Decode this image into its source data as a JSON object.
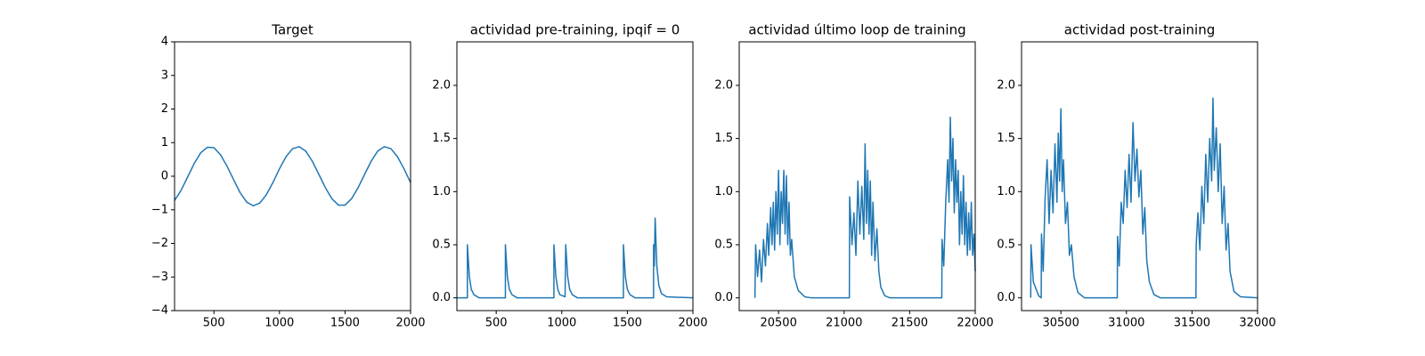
{
  "chart_data": [
    {
      "type": "line",
      "title": "Target",
      "x": [
        200,
        250,
        300,
        350,
        400,
        450,
        500,
        550,
        600,
        650,
        700,
        750,
        800,
        850,
        900,
        950,
        1000,
        1050,
        1100,
        1150,
        1200,
        1250,
        1300,
        1350,
        1400,
        1450,
        1500,
        1550,
        1600,
        1650,
        1700,
        1750,
        1800,
        1850,
        1900,
        1950,
        2000
      ],
      "values": [
        -0.72,
        -0.42,
        -0.02,
        0.38,
        0.7,
        0.86,
        0.85,
        0.64,
        0.3,
        -0.1,
        -0.49,
        -0.77,
        -0.88,
        -0.8,
        -0.55,
        -0.19,
        0.22,
        0.58,
        0.82,
        0.88,
        0.75,
        0.45,
        0.06,
        -0.34,
        -0.67,
        -0.86,
        -0.86,
        -0.67,
        -0.34,
        0.06,
        0.45,
        0.75,
        0.88,
        0.82,
        0.58,
        0.22,
        -0.19
      ],
      "color": "#1f77b4",
      "xlim": [
        200,
        2000
      ],
      "ylim": [
        -4,
        4
      ],
      "xticks": [
        500,
        1000,
        1500,
        2000
      ],
      "yticks": [
        {
          "value": -4,
          "label": "−4"
        },
        {
          "value": -3,
          "label": "−3"
        },
        {
          "value": -2,
          "label": "−2"
        },
        {
          "value": -1,
          "label": "−1"
        },
        0,
        1,
        2,
        3,
        4
      ]
    },
    {
      "type": "line",
      "title": "actividad pre-training, ipqif = 0",
      "x": [
        200,
        280,
        280,
        295,
        310,
        330,
        370,
        570,
        570,
        585,
        600,
        620,
        660,
        940,
        940,
        955,
        970,
        985,
        1025,
        1030,
        1045,
        1060,
        1080,
        1120,
        1470,
        1470,
        1485,
        1500,
        1520,
        1560,
        1700,
        1700,
        1706,
        1712,
        1725,
        1740,
        1760,
        1800,
        2000
      ],
      "values": [
        0,
        0,
        0.5,
        0.2,
        0.08,
        0.03,
        0,
        0,
        0.5,
        0.2,
        0.08,
        0.03,
        0,
        0,
        0.5,
        0.2,
        0.08,
        0.03,
        0.01,
        0.5,
        0.2,
        0.08,
        0.03,
        0,
        0,
        0.5,
        0.2,
        0.08,
        0.03,
        0,
        0,
        0.5,
        0.3,
        0.75,
        0.3,
        0.12,
        0.04,
        0.01,
        0
      ],
      "color": "#1f77b4",
      "xlim": [
        200,
        2000
      ],
      "ylim": [
        -0.12,
        2.41
      ],
      "xticks": [
        500,
        1000,
        1500,
        2000
      ],
      "yticks": [
        {
          "value": 0,
          "label": "0.0"
        },
        0.5,
        {
          "value": 1,
          "label": "1.0"
        },
        1.5,
        {
          "value": 2,
          "label": "2.0"
        }
      ]
    },
    {
      "type": "line",
      "title": "actividad último loop de training",
      "x": [
        20320,
        20325,
        20340,
        20355,
        20370,
        20385,
        20400,
        20415,
        20425,
        20440,
        20450,
        20460,
        20470,
        20480,
        20490,
        20500,
        20510,
        20520,
        20530,
        20540,
        20550,
        20560,
        20570,
        20580,
        20590,
        20600,
        20620,
        20650,
        20700,
        20750,
        21040,
        21042,
        21060,
        21075,
        21090,
        21105,
        21120,
        21135,
        21150,
        21160,
        21170,
        21180,
        21190,
        21200,
        21210,
        21220,
        21235,
        21250,
        21265,
        21280,
        21310,
        21350,
        21745,
        21747,
        21760,
        21775,
        21790,
        21800,
        21810,
        21820,
        21830,
        21840,
        21850,
        21860,
        21870,
        21880,
        21890,
        21900,
        21910,
        21920,
        21930,
        21940,
        21950,
        21960,
        21970,
        21980,
        21990,
        22000
      ],
      "values": [
        0,
        0.5,
        0.2,
        0.45,
        0.15,
        0.55,
        0.3,
        0.7,
        0.4,
        0.85,
        0.5,
        0.9,
        0.45,
        1.0,
        0.6,
        1.2,
        0.5,
        1.0,
        0.7,
        1.2,
        0.6,
        1.15,
        0.5,
        0.9,
        0.4,
        0.55,
        0.2,
        0.07,
        0.01,
        0,
        0,
        0.95,
        0.5,
        0.8,
        0.4,
        1.1,
        0.6,
        1.05,
        0.55,
        1.45,
        0.7,
        1.2,
        0.6,
        1.1,
        0.4,
        0.9,
        0.35,
        0.65,
        0.25,
        0.1,
        0.02,
        0,
        0,
        0.55,
        0.3,
        0.9,
        1.3,
        0.9,
        1.7,
        1.1,
        1.5,
        0.8,
        1.3,
        0.9,
        1.2,
        0.5,
        1.0,
        0.6,
        1.15,
        0.5,
        0.9,
        0.4,
        0.8,
        0.45,
        0.9,
        0.4,
        0.6,
        0.25
      ],
      "color": "#1f77b4",
      "xlim": [
        20200,
        22000
      ],
      "ylim": [
        -0.12,
        2.41
      ],
      "xticks": [
        20500,
        21000,
        21500,
        22000
      ],
      "yticks": [
        {
          "value": 0,
          "label": "0.0"
        },
        0.5,
        {
          "value": 1,
          "label": "1.0"
        },
        1.5,
        {
          "value": 2,
          "label": "2.0"
        }
      ]
    },
    {
      "type": "line",
      "title": "actividad post-training",
      "x": [
        30270,
        30272,
        30290,
        30330,
        30350,
        30352,
        30365,
        30380,
        30395,
        30410,
        30425,
        30440,
        30455,
        30470,
        30480,
        30490,
        30500,
        30510,
        30520,
        30535,
        30550,
        30565,
        30580,
        30600,
        30630,
        30680,
        30930,
        30932,
        30945,
        30960,
        30975,
        30990,
        31005,
        31020,
        31035,
        31050,
        31065,
        31080,
        31095,
        31110,
        31125,
        31140,
        31155,
        31175,
        31210,
        31260,
        31530,
        31532,
        31545,
        31560,
        31575,
        31590,
        31605,
        31620,
        31635,
        31650,
        31660,
        31670,
        31685,
        31700,
        31715,
        31730,
        31745,
        31760,
        31775,
        31790,
        31820,
        31870,
        32000
      ],
      "values": [
        0,
        0.5,
        0.15,
        0.02,
        0,
        0.6,
        0.25,
        0.95,
        1.3,
        0.7,
        1.2,
        0.8,
        1.45,
        0.9,
        1.55,
        1.1,
        1.78,
        1.0,
        1.3,
        0.7,
        0.9,
        0.4,
        0.5,
        0.2,
        0.05,
        0,
        0,
        0.58,
        0.3,
        0.9,
        0.7,
        1.2,
        0.85,
        1.35,
        0.9,
        1.65,
        1.1,
        1.4,
        0.95,
        1.2,
        0.6,
        0.85,
        0.35,
        0.15,
        0.03,
        0,
        0,
        0.5,
        0.8,
        0.45,
        1.05,
        0.7,
        1.35,
        0.9,
        1.5,
        1.1,
        1.88,
        1.2,
        1.6,
        1.0,
        1.45,
        0.7,
        1.05,
        0.45,
        0.7,
        0.25,
        0.06,
        0.01,
        0
      ],
      "color": "#1f77b4",
      "xlim": [
        30200,
        32000
      ],
      "ylim": [
        -0.12,
        2.41
      ],
      "xticks": [
        30500,
        31000,
        31500,
        32000
      ],
      "yticks": [
        {
          "value": 0,
          "label": "0.0"
        },
        0.5,
        {
          "value": 1,
          "label": "1.0"
        },
        1.5,
        {
          "value": 2,
          "label": "2.0"
        }
      ]
    }
  ]
}
